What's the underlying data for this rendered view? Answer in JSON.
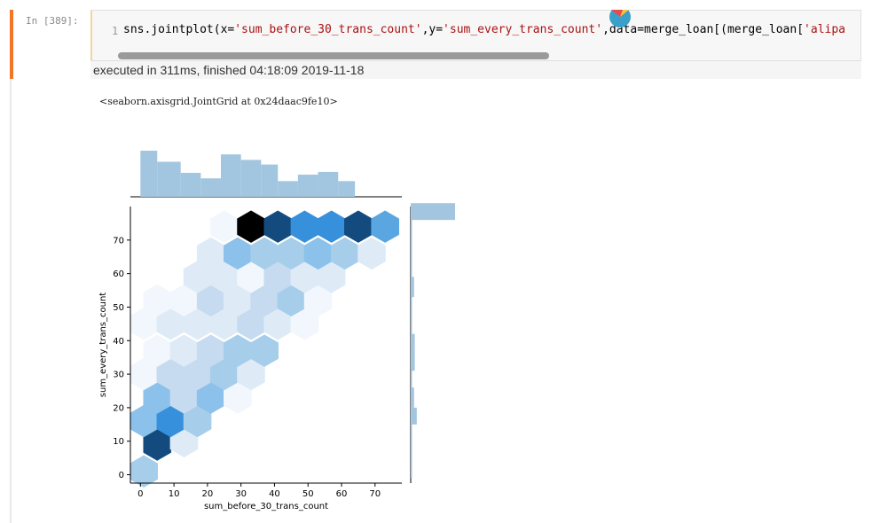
{
  "cell": {
    "prompt": "In [389]:",
    "line_number": "1",
    "code_parts": [
      "sns.jointplot(x=",
      "'sum_before_30_trans_count'",
      ",y=",
      "'sum_every_trans_count'",
      ",data=merge_loan[(merge_loan[",
      "'alipa"
    ],
    "execution_status": "executed in 311ms, finished 04:18:09 2019-11-18"
  },
  "output": {
    "repr_text": "<seaborn.axisgrid.JointGrid at 0x24daac9fe10>"
  },
  "colors": {
    "accent_cell": "#f37626",
    "hex_palette_low": "#f3f8fd",
    "hex_palette_high": "#000000",
    "marginal_hist": "#a2c6df"
  },
  "chart_data": {
    "type": "hexbin jointplot",
    "xlabel": "sum_before_30_trans_count",
    "ylabel": "sum_every_trans_count",
    "x_ticks": [
      0,
      10,
      20,
      30,
      40,
      50,
      60,
      70
    ],
    "y_ticks": [
      0,
      10,
      20,
      30,
      40,
      50,
      60,
      70
    ],
    "xlim": [
      -3,
      78
    ],
    "ylim": [
      -2.5,
      80
    ],
    "hexbins": [
      {
        "x": 1,
        "y": 1,
        "level": 3
      },
      {
        "x": 5,
        "y": 9,
        "level": 8
      },
      {
        "x": 13,
        "y": 10,
        "level": 1
      },
      {
        "x": 1,
        "y": 16,
        "level": 4
      },
      {
        "x": 9,
        "y": 16,
        "level": 6
      },
      {
        "x": 17,
        "y": 16,
        "level": 3
      },
      {
        "x": 5,
        "y": 23,
        "level": 4
      },
      {
        "x": 13,
        "y": 23,
        "level": 2
      },
      {
        "x": 21,
        "y": 23,
        "level": 4
      },
      {
        "x": 29,
        "y": 23,
        "level": 0
      },
      {
        "x": 1,
        "y": 30,
        "level": 0
      },
      {
        "x": 9,
        "y": 30,
        "level": 2
      },
      {
        "x": 17,
        "y": 30,
        "level": 2
      },
      {
        "x": 25,
        "y": 30,
        "level": 3
      },
      {
        "x": 33,
        "y": 30,
        "level": 1
      },
      {
        "x": 5,
        "y": 37,
        "level": 0
      },
      {
        "x": 13,
        "y": 37,
        "level": 1
      },
      {
        "x": 21,
        "y": 37,
        "level": 2
      },
      {
        "x": 29,
        "y": 37,
        "level": 3
      },
      {
        "x": 37,
        "y": 37,
        "level": 3
      },
      {
        "x": 1,
        "y": 45,
        "level": 0
      },
      {
        "x": 9,
        "y": 45,
        "level": 1
      },
      {
        "x": 17,
        "y": 45,
        "level": 1
      },
      {
        "x": 25,
        "y": 45,
        "level": 1
      },
      {
        "x": 33,
        "y": 45,
        "level": 2
      },
      {
        "x": 41,
        "y": 45,
        "level": 1
      },
      {
        "x": 49,
        "y": 45,
        "level": 0
      },
      {
        "x": 5,
        "y": 52,
        "level": 0
      },
      {
        "x": 13,
        "y": 52,
        "level": 0
      },
      {
        "x": 21,
        "y": 52,
        "level": 2
      },
      {
        "x": 29,
        "y": 52,
        "level": 1
      },
      {
        "x": 37,
        "y": 52,
        "level": 2
      },
      {
        "x": 45,
        "y": 52,
        "level": 3
      },
      {
        "x": 53,
        "y": 52,
        "level": 0
      },
      {
        "x": 17,
        "y": 59,
        "level": 1
      },
      {
        "x": 25,
        "y": 59,
        "level": 1
      },
      {
        "x": 33,
        "y": 59,
        "level": 0
      },
      {
        "x": 41,
        "y": 59,
        "level": 2
      },
      {
        "x": 49,
        "y": 59,
        "level": 1
      },
      {
        "x": 57,
        "y": 59,
        "level": 1
      },
      {
        "x": 21,
        "y": 66,
        "level": 1
      },
      {
        "x": 29,
        "y": 66,
        "level": 4
      },
      {
        "x": 37,
        "y": 66,
        "level": 3
      },
      {
        "x": 45,
        "y": 66,
        "level": 3
      },
      {
        "x": 53,
        "y": 66,
        "level": 4
      },
      {
        "x": 61,
        "y": 66,
        "level": 3
      },
      {
        "x": 69,
        "y": 66,
        "level": 1
      },
      {
        "x": 25,
        "y": 74,
        "level": 0
      },
      {
        "x": 33,
        "y": 74,
        "level": 9
      },
      {
        "x": 41,
        "y": 74,
        "level": 8
      },
      {
        "x": 49,
        "y": 74,
        "level": 6
      },
      {
        "x": 57,
        "y": 74,
        "level": 6
      },
      {
        "x": 65,
        "y": 74,
        "level": 8
      },
      {
        "x": 73,
        "y": 74,
        "level": 5
      }
    ],
    "marginal_x_hist": {
      "bin_edges": [
        0,
        5,
        12,
        18,
        24,
        30,
        36,
        41,
        47,
        53,
        59,
        64,
        70,
        76
      ],
      "counts": [
        50,
        38,
        26,
        20,
        46,
        40,
        35,
        17,
        24,
        27,
        17,
        0,
        0
      ]
    },
    "marginal_y_hist": {
      "bin_edges": [
        -1,
        4,
        9,
        15,
        20,
        26,
        31,
        37,
        42,
        48,
        53,
        59,
        64,
        70,
        76,
        81
      ],
      "counts": [
        2,
        2,
        2,
        9,
        5,
        2,
        6,
        6,
        2,
        2,
        5,
        2,
        2,
        2,
        66
      ]
    }
  }
}
